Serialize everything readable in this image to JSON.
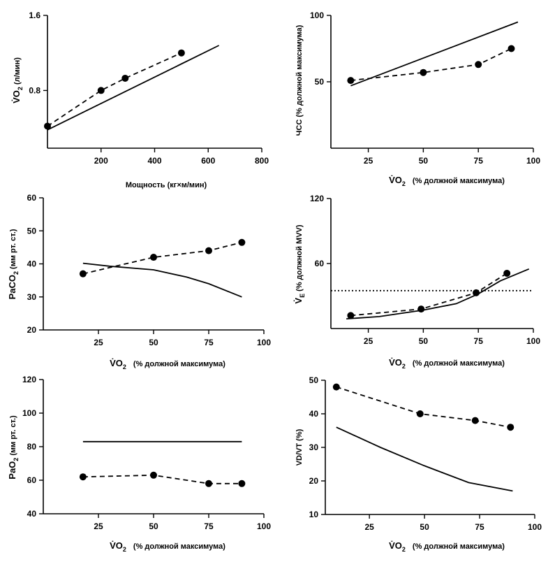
{
  "chart_data": [
    {
      "type": "line",
      "xlim": [
        0,
        800
      ],
      "ylim": [
        0.2,
        1.6
      ],
      "xticks": [
        "200",
        "400",
        "600",
        "800"
      ],
      "yticks": [
        "1.6",
        "0.8"
      ],
      "xlabel": "Мощность (кг×м/мин)",
      "ylabel_main": "V̇O",
      "ylabel_sub": "2",
      "ylabel_rest": " (л/мин)",
      "series": [
        {
          "style": "solid",
          "x": [
            0,
            640
          ],
          "y": [
            0.38,
            1.28
          ]
        },
        {
          "style": "dashed-points",
          "x": [
            0,
            200,
            290,
            500
          ],
          "y": [
            0.42,
            0.8,
            0.93,
            1.2
          ]
        }
      ]
    },
    {
      "type": "line",
      "xlim": [
        8,
        100
      ],
      "ylim": [
        0,
        100
      ],
      "xticks": [
        "25",
        "50",
        "75",
        "100"
      ],
      "yticks": [
        "100",
        "50"
      ],
      "xlabel_main": "V̇O",
      "xlabel_sub": "2",
      "xlabel_rest": "(% должной максимума)",
      "ylabel": "ЧСС (% должной максимума)",
      "series": [
        {
          "style": "solid",
          "x": [
            17,
            93
          ],
          "y": [
            47,
            95
          ]
        },
        {
          "style": "dashed-points",
          "x": [
            17,
            50,
            75,
            90
          ],
          "y": [
            51,
            57,
            63,
            75
          ]
        }
      ]
    },
    {
      "type": "line",
      "xlim": [
        0,
        100
      ],
      "ylim": [
        20,
        60
      ],
      "xticks": [
        "25",
        "50",
        "75",
        "100"
      ],
      "yticks": [
        "60",
        "50",
        "40",
        "30",
        "20"
      ],
      "xlabel_main": "V̇O",
      "xlabel_sub": "2",
      "xlabel_rest": "(% должной максимума)",
      "ylabel_main": "PaCO",
      "ylabel_sub": "2",
      "ylabel_rest": " (мм рт. ст.)",
      "series": [
        {
          "style": "solid",
          "x": [
            18,
            30,
            50,
            65,
            75,
            90
          ],
          "y": [
            40.2,
            39.3,
            38.2,
            36,
            34,
            30
          ]
        },
        {
          "style": "dashed-points",
          "x": [
            18,
            50,
            75,
            90
          ],
          "y": [
            37,
            42,
            44,
            46.5
          ]
        }
      ]
    },
    {
      "type": "line",
      "xlim": [
        8,
        100
      ],
      "ylim": [
        0,
        120
      ],
      "xticks": [
        "25",
        "50",
        "75",
        "100"
      ],
      "yticks": [
        "120",
        "60"
      ],
      "xlabel_main": "V̇O",
      "xlabel_sub": "2",
      "xlabel_rest": "(% должной максимума)",
      "ylabel_main": "V̇",
      "ylabel_sub": "E",
      "ylabel_rest": " (% должной MVV)",
      "series": [
        {
          "style": "solid",
          "x": [
            15,
            30,
            50,
            65,
            75,
            85,
            98
          ],
          "y": [
            9,
            11,
            17,
            23,
            32,
            44,
            55
          ]
        },
        {
          "style": "dashed-points",
          "x": [
            17,
            49,
            74,
            88
          ],
          "y": [
            12,
            18,
            33,
            51
          ]
        },
        {
          "style": "dotted",
          "x": [
            8,
            100
          ],
          "y": [
            35,
            35
          ]
        }
      ]
    },
    {
      "type": "line",
      "xlim": [
        0,
        100
      ],
      "ylim": [
        40,
        120
      ],
      "xticks": [
        "25",
        "50",
        "75",
        "100"
      ],
      "yticks": [
        "120",
        "100",
        "80",
        "60",
        "40"
      ],
      "xlabel_main": "V̇O",
      "xlabel_sub": "2",
      "xlabel_rest": "(% должной максимума)",
      "ylabel_main": "PaO",
      "ylabel_sub": "2",
      "ylabel_rest": " (мм рт. ст.)",
      "series": [
        {
          "style": "solid",
          "x": [
            18,
            90
          ],
          "y": [
            83,
            83
          ]
        },
        {
          "style": "dashed-points",
          "x": [
            18,
            50,
            75,
            90
          ],
          "y": [
            62,
            63,
            58,
            58
          ]
        }
      ]
    },
    {
      "type": "line",
      "xlim": [
        5,
        100
      ],
      "ylim": [
        10,
        50
      ],
      "xticks": [
        "25",
        "50",
        "75",
        "100"
      ],
      "yticks": [
        "50",
        "40",
        "30",
        "20",
        "10"
      ],
      "xlabel_main": "V̇O",
      "xlabel_sub": "2",
      "xlabel_rest": "(% должной максимума)",
      "ylabel": "VD/VT (%)",
      "series": [
        {
          "style": "solid",
          "x": [
            10,
            30,
            50,
            70,
            90
          ],
          "y": [
            36,
            30,
            24.5,
            19.5,
            17
          ]
        },
        {
          "style": "dashed-points",
          "x": [
            10,
            48,
            73,
            89
          ],
          "y": [
            48,
            40,
            38,
            36
          ]
        }
      ]
    }
  ]
}
